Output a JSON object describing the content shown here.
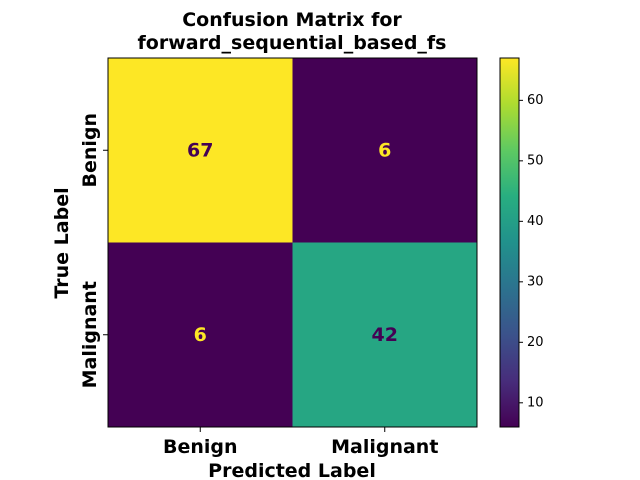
{
  "chart_data": {
    "type": "heatmap",
    "title_lines": [
      "Confusion Matrix for",
      "forward_sequential_based_fs"
    ],
    "xlabel": "Predicted Label",
    "ylabel": "True Label",
    "x_categories": [
      "Benign",
      "Malignant"
    ],
    "y_categories": [
      "Benign",
      "Malignant"
    ],
    "matrix": [
      [
        67,
        6
      ],
      [
        6,
        42
      ]
    ],
    "colormap": "viridis",
    "colorbar": {
      "min": 6,
      "max": 67,
      "ticks": [
        10,
        20,
        30,
        40,
        50,
        60
      ]
    },
    "cell_text_colors": {
      "on_dark": "#fde725",
      "on_light": "#440154"
    }
  }
}
